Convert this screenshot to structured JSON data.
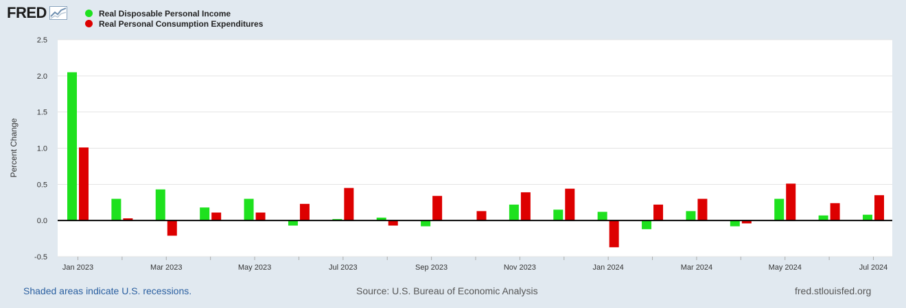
{
  "header": {
    "logo_text": "FRED",
    "logo_icon": "chart-line-icon"
  },
  "legend": [
    {
      "label": "Real Disposable Personal Income",
      "color": "#1ee11e"
    },
    {
      "label": "Real Personal Consumption Expenditures",
      "color": "#dd0000"
    }
  ],
  "footer": {
    "recession_note": "Shaded areas indicate U.S. recessions.",
    "source": "Source: U.S. Bureau of Economic Analysis",
    "site": "fred.stlouisfed.org"
  },
  "chart_data": {
    "type": "bar",
    "title": "",
    "xlabel": "",
    "ylabel": "Percent Change",
    "ylim": [
      -0.5,
      2.5
    ],
    "yticks": [
      2.5,
      2.0,
      1.5,
      1.0,
      0.5,
      0.0,
      -0.5
    ],
    "ytick_labels": [
      "2.5",
      "2.0",
      "1.5",
      "1.0",
      "0.5",
      "0.0",
      "-0.5"
    ],
    "grid": true,
    "categories": [
      "Jan 2023",
      "Feb 2023",
      "Mar 2023",
      "Apr 2023",
      "May 2023",
      "Jun 2023",
      "Jul 2023",
      "Aug 2023",
      "Sep 2023",
      "Oct 2023",
      "Nov 2023",
      "Dec 2023",
      "Jan 2024",
      "Feb 2024",
      "Mar 2024",
      "Apr 2024",
      "May 2024",
      "Jun 2024",
      "Jul 2024"
    ],
    "xtick_labels": [
      "Jan 2023",
      "",
      "Mar 2023",
      "",
      "May 2023",
      "",
      "Jul 2023",
      "",
      "Sep 2023",
      "",
      "Nov 2023",
      "",
      "Jan 2024",
      "",
      "Mar 2024",
      "",
      "May 2024",
      "",
      "Jul 2024"
    ],
    "series": [
      {
        "name": "Real Disposable Personal Income",
        "color": "#1ee11e",
        "values": [
          2.05,
          0.3,
          0.43,
          0.18,
          0.3,
          -0.07,
          0.02,
          0.04,
          -0.08,
          0.0,
          0.22,
          0.15,
          0.12,
          -0.12,
          0.13,
          -0.08,
          0.3,
          0.07,
          0.08
        ]
      },
      {
        "name": "Real Personal Consumption Expenditures",
        "color": "#dd0000",
        "values": [
          1.01,
          0.03,
          -0.21,
          0.11,
          0.11,
          0.23,
          0.45,
          -0.07,
          0.34,
          0.13,
          0.39,
          0.44,
          -0.37,
          0.22,
          0.3,
          -0.04,
          0.51,
          0.24,
          0.35
        ]
      }
    ]
  }
}
